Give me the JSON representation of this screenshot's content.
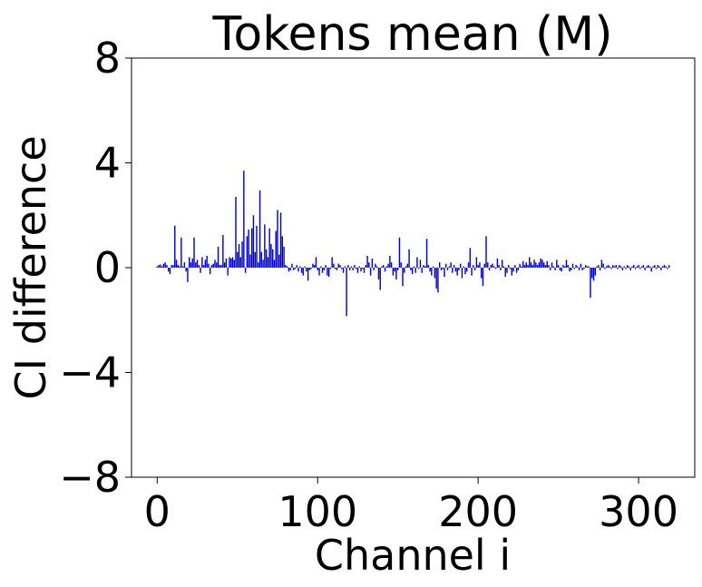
{
  "chart_data": {
    "type": "bar",
    "title": "Tokens mean (M)",
    "xlabel": "Channel i",
    "ylabel": "CI difference",
    "xlim": [
      -16,
      335
    ],
    "ylim": [
      -8,
      8
    ],
    "xticks": [
      0,
      100,
      200,
      300
    ],
    "xtick_labels": [
      "0",
      "100",
      "200",
      "300"
    ],
    "yticks": [
      -8,
      -4,
      0,
      4,
      8
    ],
    "ytick_labels": [
      "−8",
      "−4",
      "0",
      "4",
      "8"
    ],
    "grid": false,
    "bar_color": "#0000cc",
    "series": [
      {
        "values": [
          0.05,
          0.1,
          0.12,
          0.05,
          0.15,
          0.2,
          0.1,
          -0.15,
          -0.25,
          0.1,
          0.1,
          1.6,
          0.3,
          0.1,
          0.05,
          1.15,
          0.05,
          0.2,
          -0.15,
          -0.55,
          0.4,
          0.2,
          0.35,
          1.15,
          0.2,
          0.3,
          0.1,
          -0.2,
          0.4,
          0.1,
          0.3,
          0.45,
          0.15,
          -0.25,
          0.1,
          0.15,
          0.3,
          0.2,
          0.8,
          0.1,
          0.1,
          1.25,
          0.2,
          0.35,
          -0.3,
          0.4,
          0.35,
          0.4,
          0.3,
          2.7,
          0.6,
          0.9,
          0.4,
          1.0,
          3.7,
          -0.2,
          1.2,
          1.45,
          0.5,
          1.5,
          2.0,
          0.6,
          1.6,
          0.2,
          2.95,
          0.6,
          0.3,
          1.65,
          0.7,
          0.4,
          1.5,
          0.9,
          0.7,
          0.3,
          1.4,
          2.2,
          0.5,
          2.1,
          1.2,
          0.8,
          0.1,
          0.05,
          -0.15,
          -0.1,
          0.15,
          -0.1,
          -0.05,
          0.1,
          -0.15,
          0.05,
          -0.2,
          -0.3,
          0.05,
          -0.15,
          -0.5,
          -0.1,
          -0.05,
          0.15,
          0.1,
          0.4,
          -0.1,
          -0.3,
          0.05,
          -0.2,
          -0.1,
          0.1,
          -0.3,
          -0.35,
          -0.05,
          0.4,
          0.15,
          -0.05,
          -0.1,
          0.15,
          0.1,
          -0.05,
          -0.2,
          0.05,
          -1.85,
          0.1,
          -0.1,
          0.05,
          -0.1,
          0.1,
          -0.05,
          -0.2,
          0.05,
          -0.15,
          -0.05,
          -0.2,
          0.1,
          0.45,
          0.2,
          -0.3,
          0.35,
          -0.1,
          0.15,
          0.05,
          -0.45,
          -0.85,
          0.05,
          0.1,
          -0.15,
          0.05,
          0.15,
          0.45,
          0.2,
          -0.3,
          -0.15,
          -0.45,
          -0.1,
          1.15,
          0.2,
          -0.7,
          -0.2,
          0.05,
          0.15,
          0.7,
          -0.1,
          -0.25,
          0.05,
          -0.2,
          0.4,
          -0.05,
          0.3,
          -0.2,
          0.1,
          0.05,
          1.1,
          0.1,
          -0.15,
          -0.3,
          0.05,
          -0.4,
          -0.8,
          -0.95,
          0.2,
          -0.1,
          -0.05,
          -0.35,
          0.15,
          -0.1,
          0.05,
          0.2,
          -0.2,
          0.1,
          -0.15,
          -0.3,
          -0.1,
          0.15,
          -0.4,
          0.05,
          -0.25,
          -0.15,
          0.2,
          0.75,
          -0.3,
          0.1,
          -0.1,
          0.4,
          0.1,
          0.2,
          -0.4,
          -0.7,
          0.15,
          1.2,
          0.2,
          -0.1,
          0.1,
          0.15,
          0.05,
          -0.05,
          0.35,
          0.1,
          -0.1,
          0.3,
          0.05,
          -0.35,
          -0.2,
          0.1,
          -0.05,
          -0.3,
          -0.15,
          0.1,
          -0.2,
          -0.1,
          0.15,
          0.05,
          0.25,
          0.1,
          0.2,
          0.1,
          0.4,
          0.2,
          0.1,
          0.3,
          0.2,
          0.1,
          0.2,
          0.35,
          0.3,
          0.2,
          0.1,
          0.25,
          0.1,
          -0.1,
          0.2,
          0.05,
          -0.1,
          0.3,
          0.1,
          -0.1,
          -0.15,
          0.1,
          0.05,
          0.3,
          0.1,
          -0.15,
          -0.1,
          0.15,
          -0.05,
          0.1,
          0.05,
          -0.1,
          0.15,
          -0.1,
          -0.05,
          0.1,
          0.05,
          0.05,
          -1.15,
          -0.4,
          -0.5,
          -0.3,
          0.05,
          0.1,
          -0.1,
          0.3,
          0.15,
          -0.05,
          0.05,
          0.1,
          0.05,
          -0.05,
          0.1,
          0.05,
          0.1,
          -0.05,
          0.1,
          0.05,
          -0.1,
          0.05,
          -0.05,
          0.1,
          0.05,
          -0.1,
          0.05,
          0.1,
          -0.05,
          0.05,
          0.1,
          -0.05,
          0.05,
          0.1,
          -0.1,
          0.05,
          0.1,
          0.05,
          -0.15,
          0.05,
          0.1,
          -0.05,
          0.1,
          0.05,
          -0.1,
          0.05,
          0.1,
          0.05,
          -0.05,
          0.1
        ]
      }
    ]
  }
}
